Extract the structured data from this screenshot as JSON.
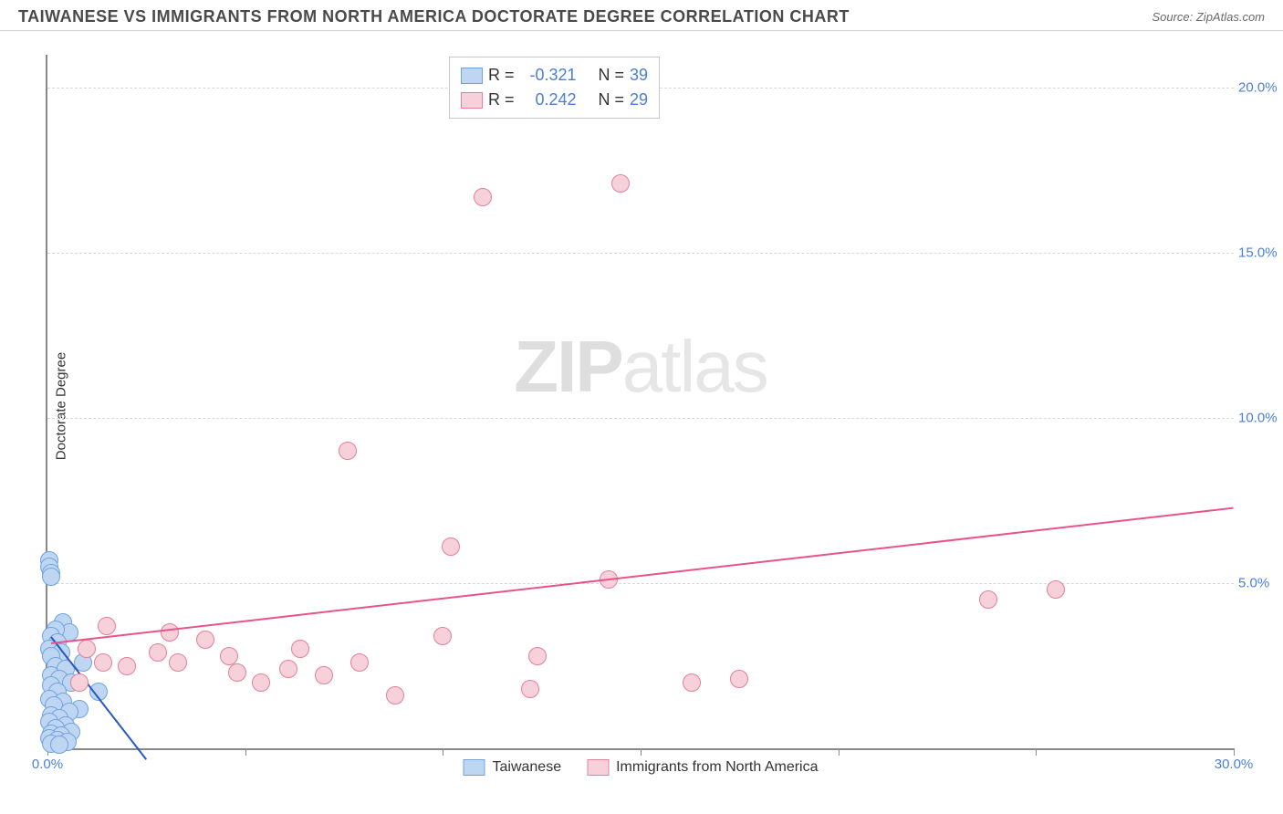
{
  "header": {
    "title": "TAIWANESE VS IMMIGRANTS FROM NORTH AMERICA DOCTORATE DEGREE CORRELATION CHART",
    "source": "Source: ZipAtlas.com"
  },
  "watermark": {
    "bold": "ZIP",
    "rest": "atlas"
  },
  "chart": {
    "type": "scatter",
    "ylabel": "Doctorate Degree",
    "xlim": [
      0,
      30
    ],
    "ylim": [
      0,
      21
    ],
    "xtick_positions": [
      0,
      5,
      10,
      15,
      20,
      25,
      30
    ],
    "xtick_labels_shown": {
      "0": "0.0%",
      "30": "30.0%"
    },
    "ytick_positions": [
      5,
      10,
      15,
      20
    ],
    "ytick_labels": {
      "5": "5.0%",
      "10": "10.0%",
      "15": "15.0%",
      "20": "20.0%"
    },
    "grid_color": "#d8d8d8",
    "axis_color": "#888888",
    "tick_label_color": "#4a7fd6",
    "background_color": "#ffffff",
    "marker_radius": 10,
    "marker_border_width": 1,
    "series": [
      {
        "name": "Taiwanese",
        "fill": "#bfd6f2",
        "stroke": "#6fa3e0",
        "trend_color": "#2a56c6",
        "R": "-0.321",
        "N": "39",
        "trend": {
          "x1": 0.1,
          "y1": 3.4,
          "x2": 2.5,
          "y2": -0.3
        },
        "points": [
          {
            "x": 0.05,
            "y": 5.7
          },
          {
            "x": 0.05,
            "y": 5.5
          },
          {
            "x": 0.1,
            "y": 5.3
          },
          {
            "x": 0.1,
            "y": 5.2
          },
          {
            "x": 0.4,
            "y": 3.8
          },
          {
            "x": 0.55,
            "y": 3.5
          },
          {
            "x": 0.2,
            "y": 3.6
          },
          {
            "x": 0.1,
            "y": 3.4
          },
          {
            "x": 0.25,
            "y": 3.2
          },
          {
            "x": 0.05,
            "y": 3.0
          },
          {
            "x": 0.35,
            "y": 2.9
          },
          {
            "x": 0.1,
            "y": 2.8
          },
          {
            "x": 0.9,
            "y": 2.6
          },
          {
            "x": 0.2,
            "y": 2.5
          },
          {
            "x": 0.45,
            "y": 2.4
          },
          {
            "x": 0.1,
            "y": 2.2
          },
          {
            "x": 0.3,
            "y": 2.1
          },
          {
            "x": 0.6,
            "y": 2.0
          },
          {
            "x": 0.1,
            "y": 1.9
          },
          {
            "x": 0.25,
            "y": 1.7
          },
          {
            "x": 1.3,
            "y": 1.7
          },
          {
            "x": 0.05,
            "y": 1.5
          },
          {
            "x": 0.4,
            "y": 1.4
          },
          {
            "x": 0.15,
            "y": 1.3
          },
          {
            "x": 0.8,
            "y": 1.2
          },
          {
            "x": 0.55,
            "y": 1.1
          },
          {
            "x": 0.1,
            "y": 1.0
          },
          {
            "x": 0.3,
            "y": 0.9
          },
          {
            "x": 0.05,
            "y": 0.8
          },
          {
            "x": 0.45,
            "y": 0.7
          },
          {
            "x": 0.2,
            "y": 0.6
          },
          {
            "x": 0.6,
            "y": 0.5
          },
          {
            "x": 0.1,
            "y": 0.45
          },
          {
            "x": 0.35,
            "y": 0.4
          },
          {
            "x": 0.05,
            "y": 0.3
          },
          {
            "x": 0.25,
            "y": 0.25
          },
          {
            "x": 0.5,
            "y": 0.2
          },
          {
            "x": 0.1,
            "y": 0.15
          },
          {
            "x": 0.3,
            "y": 0.1
          }
        ]
      },
      {
        "name": "Immigrants from North America",
        "fill": "#f7d1da",
        "stroke": "#e57f9b",
        "trend_color": "#e8548a",
        "R": "0.242",
        "N": "29",
        "trend": {
          "x1": 0.1,
          "y1": 3.2,
          "x2": 30.0,
          "y2": 7.3
        },
        "points": [
          {
            "x": 1.5,
            "y": 3.7
          },
          {
            "x": 1.0,
            "y": 3.0
          },
          {
            "x": 1.4,
            "y": 2.6
          },
          {
            "x": 2.0,
            "y": 2.5
          },
          {
            "x": 2.8,
            "y": 2.9
          },
          {
            "x": 3.1,
            "y": 3.5
          },
          {
            "x": 3.3,
            "y": 2.6
          },
          {
            "x": 4.0,
            "y": 3.3
          },
          {
            "x": 4.6,
            "y": 2.8
          },
          {
            "x": 4.8,
            "y": 2.3
          },
          {
            "x": 5.4,
            "y": 2.0
          },
          {
            "x": 6.1,
            "y": 2.4
          },
          {
            "x": 6.4,
            "y": 3.0
          },
          {
            "x": 7.0,
            "y": 2.2
          },
          {
            "x": 7.9,
            "y": 2.6
          },
          {
            "x": 8.8,
            "y": 1.6
          },
          {
            "x": 7.6,
            "y": 9.0
          },
          {
            "x": 10.0,
            "y": 3.4
          },
          {
            "x": 10.2,
            "y": 6.1
          },
          {
            "x": 11.0,
            "y": 16.7
          },
          {
            "x": 12.2,
            "y": 1.8
          },
          {
            "x": 12.4,
            "y": 2.8
          },
          {
            "x": 14.2,
            "y": 5.1
          },
          {
            "x": 14.5,
            "y": 17.1
          },
          {
            "x": 16.3,
            "y": 2.0
          },
          {
            "x": 17.5,
            "y": 2.1
          },
          {
            "x": 23.8,
            "y": 4.5
          },
          {
            "x": 25.5,
            "y": 4.8
          },
          {
            "x": 0.8,
            "y": 2.0
          }
        ]
      }
    ],
    "legend_top": {
      "rows": [
        {
          "swatch_fill": "#bfd6f2",
          "swatch_stroke": "#6fa3e0",
          "r_label": "R =",
          "r_val": "-0.321",
          "n_label": "N =",
          "n_val": "39"
        },
        {
          "swatch_fill": "#f7d1da",
          "swatch_stroke": "#e57f9b",
          "r_label": "R =",
          "r_val": "0.242",
          "n_label": "N =",
          "n_val": "29"
        }
      ]
    },
    "legend_bottom": [
      {
        "swatch_fill": "#bfd6f2",
        "swatch_stroke": "#6fa3e0",
        "label": "Taiwanese"
      },
      {
        "swatch_fill": "#f7d1da",
        "swatch_stroke": "#e57f9b",
        "label": "Immigrants from North America"
      }
    ]
  }
}
